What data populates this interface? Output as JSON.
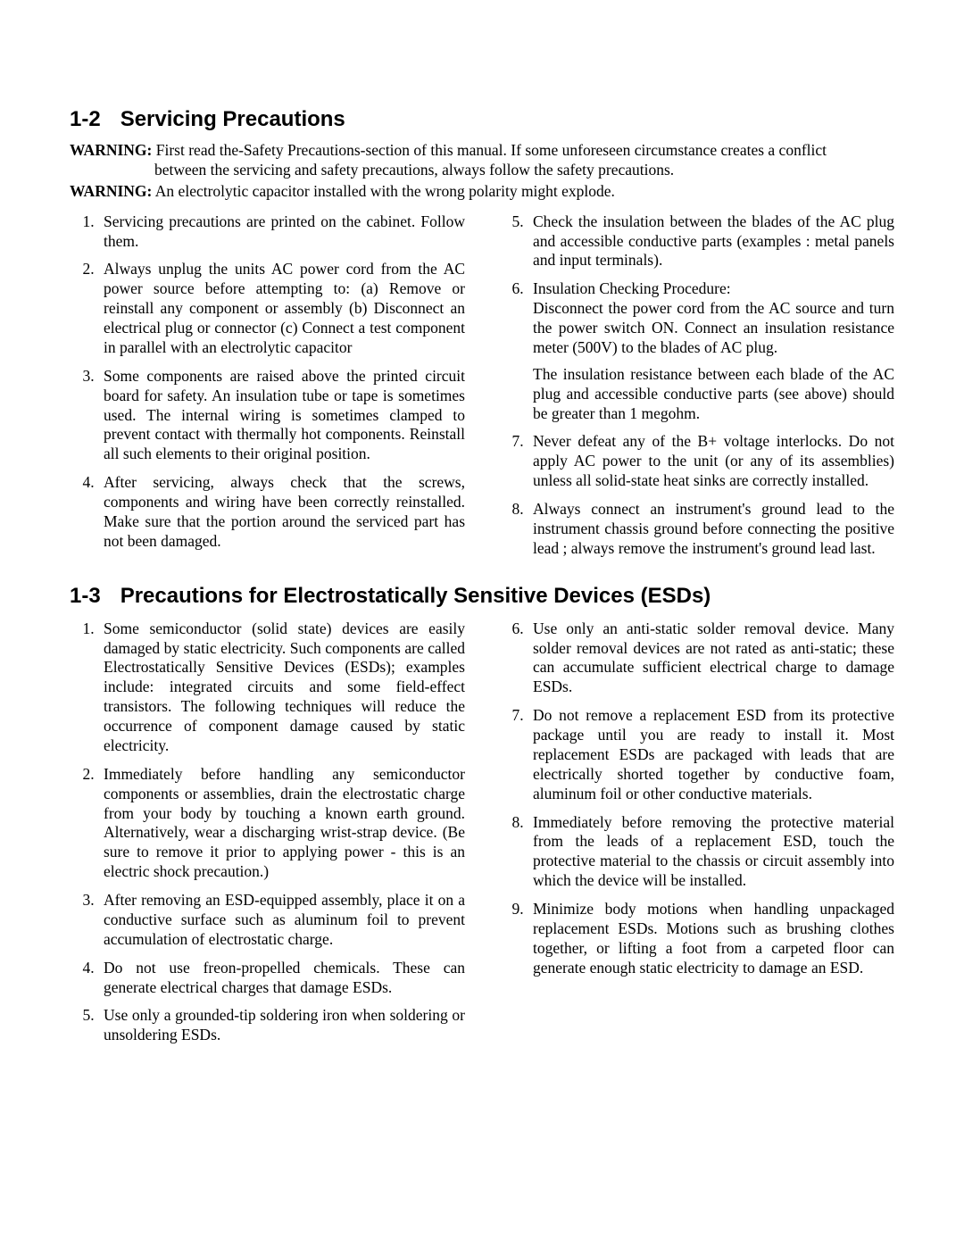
{
  "section_1_2": {
    "number": "1-2",
    "title": "Servicing Precautions",
    "warning1_label": "WARNING:",
    "warning1_line1": "First read the-Safety Precautions-section of this manual. If some unforeseen circumstance creates a conflict",
    "warning1_line2": "between the servicing and safety precautions, always follow the safety precautions.",
    "warning2_label": "WARNING:",
    "warning2_text": "An electrolytic capacitor installed with the wrong polarity might explode.",
    "left": {
      "i1": "Servicing precautions are printed on the cabinet. Follow them.",
      "i2": "Always unplug the units AC power cord from the AC power source before attempting to: (a) Remove or reinstall any component or assembly (b) Disconnect an electrical plug or connector (c) Connect a test component in parallel with an electrolytic capacitor",
      "i3": "Some components are raised above the printed circuit board for safety.  An insulation tube or tape is sometimes used. The internal wiring is sometimes clamped to prevent contact with thermally hot components. Reinstall all such elements to their original position.",
      "i4": "After servicing, always check that the screws, components and wiring have been correctly reinstalled. Make sure that the portion around the serviced part has not been damaged."
    },
    "right": {
      "i5": "Check the insulation between the blades of the AC plug and accessible conductive parts (examples : metal panels and input terminals).",
      "i6a": "Insulation Checking Procedure:",
      "i6b": "Disconnect the power cord from the AC source and turn  the power switch ON. Connect an insulation resistance meter (500V) to the blades of AC plug.",
      "i6c": "The insulation resistance between each blade of the AC plug and accessible conductive parts (see above) should be greater than 1 megohm.",
      "i7": "Never defeat any of the B+ voltage interlocks. Do not apply AC power to the unit (or any of its assemblies) unless all solid-state heat sinks are correctly installed.",
      "i8": "Always connect an instrument's ground lead to the instrument chassis ground before connecting the positive lead ; always remove the instrument's ground lead last."
    }
  },
  "section_1_3": {
    "number": "1-3",
    "title": "Precautions for Electrostatically Sensitive Devices (ESDs)",
    "left": {
      "i1": "Some semiconductor (solid state) devices are easily damaged by static electricity.  Such components are called Electrostatically Sensitive Devices  (ESDs); examples include: integrated circuits and some field-effect transistors. The following techniques will reduce the occurrence of component damage caused by static electricity.",
      "i2": "Immediately before handling any semiconductor components or assemblies, drain the electrostatic charge from your body by touching a known earth ground. Alternatively, wear a discharging wrist-strap device. (Be sure to remove it prior to applying power - this is an electric shock precaution.)",
      "i3": "After removing an ESD-equipped assembly, place it on a conductive surface such as aluminum foil to prevent accumulation of electrostatic charge.",
      "i4": "Do not use freon-propelled chemicals.  These can generate electrical charges that damage ESDs.",
      "i5": "Use only a grounded-tip soldering iron when soldering or unsoldering ESDs."
    },
    "right": {
      "i6": "Use only an anti-static solder removal device.  Many solder removal devices are not rated as anti-static; these can accumulate sufficient electrical charge to damage ESDs.",
      "i7": "Do not remove a replacement ESD from its protective package until you are ready to install it. Most replacement ESDs are packaged with leads that are electrically shorted together by conductive foam, aluminum foil or other conductive materials.",
      "i8": "Immediately before removing the protective material from the leads of a replacement ESD, touch the protective material to the chassis or circuit  assembly into which the device will be installed.",
      "i9": "Minimize body motions when handling unpackaged replacement ESDs. Motions such as brushing clothes together, or lifting a foot from a carpeted floor can generate enough static electricity to damage an ESD."
    }
  }
}
